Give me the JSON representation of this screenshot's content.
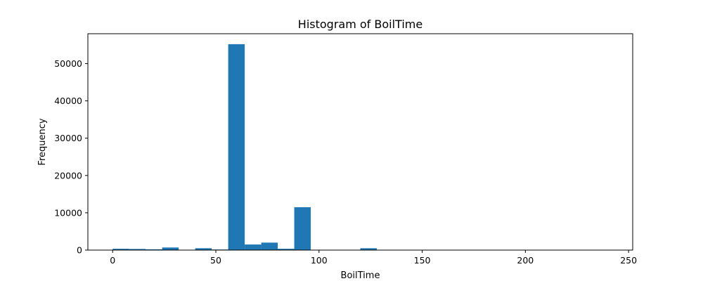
{
  "chart_data": {
    "type": "bar",
    "title": "Histogram of BoilTime",
    "xlabel": "BoilTime",
    "ylabel": "Frequency",
    "xlim": [
      -12,
      252
    ],
    "ylim": [
      0,
      58000
    ],
    "xticks": [
      0,
      50,
      100,
      150,
      200,
      250
    ],
    "yticks": [
      0,
      10000,
      20000,
      30000,
      40000,
      50000
    ],
    "bin_width": 8,
    "bins": [
      {
        "start": 0,
        "value": 350
      },
      {
        "start": 8,
        "value": 300
      },
      {
        "start": 16,
        "value": 200
      },
      {
        "start": 24,
        "value": 700
      },
      {
        "start": 32,
        "value": 0
      },
      {
        "start": 40,
        "value": 500
      },
      {
        "start": 48,
        "value": 150
      },
      {
        "start": 56,
        "value": 55200
      },
      {
        "start": 64,
        "value": 1500
      },
      {
        "start": 72,
        "value": 2000
      },
      {
        "start": 80,
        "value": 350
      },
      {
        "start": 88,
        "value": 11500
      },
      {
        "start": 96,
        "value": 0
      },
      {
        "start": 104,
        "value": 0
      },
      {
        "start": 112,
        "value": 0
      },
      {
        "start": 120,
        "value": 500
      },
      {
        "start": 128,
        "value": 0
      },
      {
        "start": 136,
        "value": 0
      },
      {
        "start": 144,
        "value": 0
      },
      {
        "start": 152,
        "value": 0
      },
      {
        "start": 160,
        "value": 0
      },
      {
        "start": 168,
        "value": 0
      },
      {
        "start": 176,
        "value": 0
      },
      {
        "start": 184,
        "value": 0
      },
      {
        "start": 192,
        "value": 0
      },
      {
        "start": 200,
        "value": 0
      },
      {
        "start": 208,
        "value": 0
      },
      {
        "start": 216,
        "value": 0
      },
      {
        "start": 224,
        "value": 0
      },
      {
        "start": 232,
        "value": 0
      }
    ],
    "bar_color": "#1f77b4",
    "grid": false,
    "legend": "none"
  }
}
